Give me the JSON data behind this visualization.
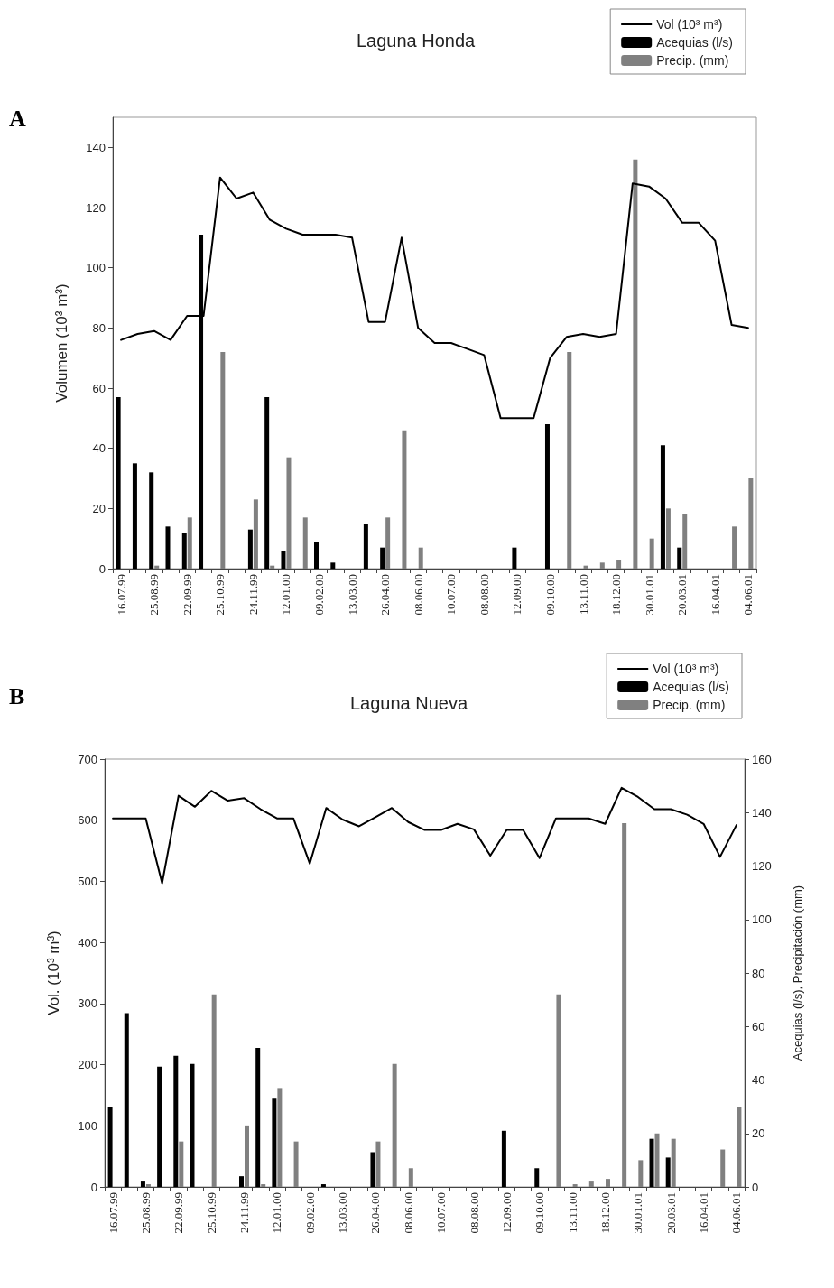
{
  "chart_data": [
    {
      "type": "bar",
      "title": "Laguna Honda",
      "ylabel": "Volumen (10³ m³)",
      "annotations": [
        "A"
      ],
      "categories": [
        "16.07.99",
        null,
        "25.08.99",
        null,
        "22.09.99",
        null,
        "25.10.99",
        null,
        "24.11.99",
        null,
        "12.01.00",
        null,
        "09.02.00",
        null,
        "13.03.00",
        null,
        "26.04.00",
        null,
        "08.06.00",
        null,
        "10.07.00",
        null,
        "08.08.00",
        null,
        "12.09.00",
        null,
        "09.10.00",
        null,
        "13.11.00",
        null,
        "18.12.00",
        null,
        "30.01.01",
        null,
        "20.03.01",
        null,
        "16.04.01",
        null,
        "04.06.01"
      ],
      "series": [
        {
          "name": "Vol (10³ m³)",
          "type": "line",
          "color": "#000000",
          "values": [
            76,
            78,
            79,
            76,
            84,
            84,
            130,
            123,
            125,
            116,
            113,
            111,
            111,
            111,
            110,
            82,
            82,
            110,
            80,
            75,
            75,
            73,
            71,
            50,
            50,
            50,
            70,
            77,
            78,
            77,
            78,
            128,
            127,
            123,
            115,
            115,
            109,
            81,
            80
          ]
        },
        {
          "name": "Acequias (l/s)",
          "color": "#000000",
          "values": [
            57,
            35,
            32,
            14,
            12,
            111,
            null,
            null,
            13,
            57,
            6,
            null,
            9,
            2,
            null,
            15,
            7,
            null,
            null,
            null,
            null,
            null,
            null,
            null,
            7,
            null,
            48,
            null,
            null,
            null,
            null,
            null,
            null,
            41,
            7,
            null,
            null,
            null,
            null
          ]
        },
        {
          "name": "Precip. (mm)",
          "color": "#808080",
          "values": [
            null,
            null,
            1,
            null,
            17,
            null,
            72,
            null,
            23,
            1,
            37,
            17,
            null,
            null,
            null,
            null,
            17,
            46,
            7,
            null,
            null,
            null,
            null,
            null,
            null,
            null,
            null,
            72,
            1,
            2,
            3,
            136,
            10,
            20,
            18,
            null,
            null,
            14,
            30
          ]
        }
      ],
      "ylim": [
        0,
        150
      ],
      "yticks": [
        0,
        20,
        40,
        60,
        80,
        100,
        120,
        140
      ],
      "grid": false,
      "legend": "top right",
      "marker": "none",
      "line_style": "solid"
    },
    {
      "type": "bar",
      "title": "Laguna Nueva",
      "ylabel": "Vol. (10³ m³)",
      "y2label": "Acequias (l/s), Precipitación (mm)",
      "annotations": [
        "B"
      ],
      "categories": [
        "16.07.99",
        null,
        "25.08.99",
        null,
        "22.09.99",
        null,
        "25.10.99",
        null,
        "24.11.99",
        null,
        "12.01.00",
        null,
        "09.02.00",
        null,
        "13.03.00",
        null,
        "26.04.00",
        null,
        "08.06.00",
        null,
        "10.07.00",
        null,
        "08.08.00",
        null,
        "12.09.00",
        null,
        "09.10.00",
        null,
        "13.11.00",
        null,
        "18.12.00",
        null,
        "30.01.01",
        null,
        "20.03.01",
        null,
        "16.04.01",
        null,
        "04.06.01"
      ],
      "series": [
        {
          "name": "Vol (10³ m³)",
          "type": "line",
          "color": "#000000",
          "values": [
            603,
            603,
            603,
            497,
            640,
            622,
            648,
            632,
            636,
            618,
            603,
            603,
            529,
            620,
            601,
            590,
            605,
            620,
            597,
            584,
            584,
            594,
            585,
            542,
            584,
            584,
            538,
            603,
            603,
            603,
            594,
            653,
            638,
            618,
            618,
            609,
            594,
            540,
            592
          ]
        },
        {
          "name": "Acequias (l/s)",
          "axis": "y2",
          "color": "#000000",
          "values": [
            30,
            65,
            2,
            45,
            49,
            46,
            null,
            null,
            4,
            52,
            33,
            null,
            null,
            1,
            null,
            null,
            13,
            null,
            null,
            null,
            null,
            null,
            null,
            null,
            21,
            null,
            7,
            null,
            null,
            null,
            null,
            null,
            null,
            18,
            11,
            null,
            null,
            null,
            null
          ]
        },
        {
          "name": "Precip. (mm)",
          "axis": "y2",
          "color": "#808080",
          "values": [
            null,
            null,
            1,
            null,
            17,
            null,
            72,
            null,
            23,
            1,
            37,
            17,
            null,
            null,
            null,
            null,
            17,
            46,
            7,
            null,
            null,
            null,
            null,
            null,
            null,
            null,
            null,
            72,
            1,
            2,
            3,
            136,
            10,
            20,
            18,
            null,
            null,
            14,
            30
          ]
        }
      ],
      "ylim": [
        0,
        700
      ],
      "yticks": [
        0,
        100,
        200,
        300,
        400,
        500,
        600,
        700
      ],
      "y2lim": [
        0,
        160
      ],
      "y2ticks": [
        0,
        20,
        40,
        60,
        80,
        100,
        120,
        140,
        160
      ],
      "grid": false,
      "legend": "top right",
      "marker": "none",
      "line_style": "solid"
    }
  ]
}
